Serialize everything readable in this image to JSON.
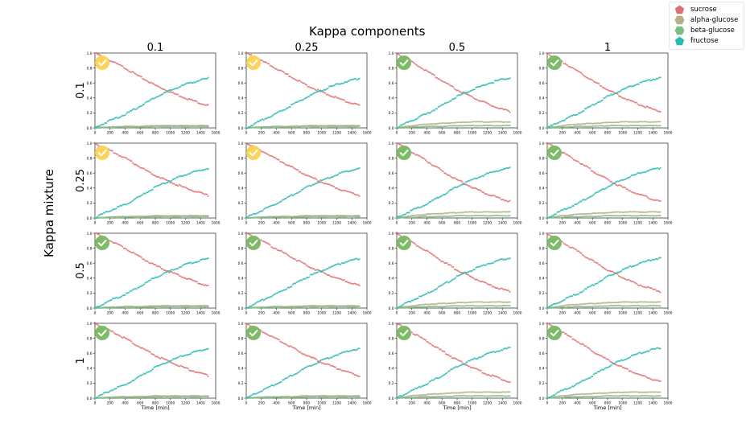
{
  "figure": {
    "title": "Kappa components",
    "row_title": "Kappa mixture",
    "column_labels": [
      "0.1",
      "0.25",
      "0.5",
      "1"
    ],
    "row_labels": [
      "0.1",
      "0.25",
      "0.5",
      "1"
    ],
    "status": [
      [
        "warning",
        "warning",
        "ok",
        "ok"
      ],
      [
        "warning",
        "warning",
        "ok",
        "ok"
      ],
      [
        "ok",
        "ok",
        "ok",
        "ok"
      ],
      [
        "ok",
        "ok",
        "ok",
        "ok"
      ]
    ],
    "status_colors": {
      "ok": "#7dbb66",
      "warning": "#fdd35a"
    }
  },
  "legend": [
    {
      "label": "sucrose",
      "color": "#e07070",
      "shape": "pentagon"
    },
    {
      "label": "alpha-glucose",
      "color": "#b9ae88",
      "shape": "hexagon"
    },
    {
      "label": "beta-glucose",
      "color": "#7cbf84",
      "shape": "hexagon"
    },
    {
      "label": "fructose",
      "color": "#2bb9b3",
      "shape": "pentagon"
    }
  ],
  "chart_data": {
    "type": "scatter",
    "xlabel": "Time [min]",
    "ylabel": "",
    "xlim": [
      0,
      1600
    ],
    "ylim": [
      0,
      1.0
    ],
    "x_ticks": [
      0,
      200,
      400,
      600,
      800,
      1000,
      1200,
      1400,
      1600
    ],
    "y_ticks": [
      "0.0",
      "0.2",
      "0.4",
      "0.6",
      "0.8",
      "1.0"
    ],
    "grid": false,
    "legend_position": "top-right",
    "x": [
      0,
      200,
      400,
      600,
      800,
      1000,
      1200,
      1400,
      1500
    ],
    "series_by_column": [
      [
        {
          "name": "sucrose",
          "values": [
            1.0,
            0.9,
            0.8,
            0.68,
            0.57,
            0.48,
            0.4,
            0.33,
            0.3
          ]
        },
        {
          "name": "alpha-glucose",
          "values": [
            0.0,
            0.01,
            0.02,
            0.02,
            0.03,
            0.03,
            0.03,
            0.03,
            0.03
          ]
        },
        {
          "name": "beta-glucose",
          "values": [
            0.0,
            0.01,
            0.01,
            0.01,
            0.02,
            0.02,
            0.02,
            0.02,
            0.02
          ]
        },
        {
          "name": "fructose",
          "values": [
            0.0,
            0.1,
            0.18,
            0.29,
            0.41,
            0.5,
            0.58,
            0.64,
            0.66
          ]
        }
      ],
      [
        {
          "name": "sucrose",
          "values": [
            1.0,
            0.9,
            0.79,
            0.68,
            0.57,
            0.48,
            0.4,
            0.33,
            0.3
          ]
        },
        {
          "name": "alpha-glucose",
          "values": [
            0.0,
            0.01,
            0.02,
            0.02,
            0.03,
            0.03,
            0.03,
            0.03,
            0.03
          ]
        },
        {
          "name": "beta-glucose",
          "values": [
            0.0,
            0.01,
            0.01,
            0.01,
            0.02,
            0.02,
            0.02,
            0.02,
            0.02
          ]
        },
        {
          "name": "fructose",
          "values": [
            0.0,
            0.1,
            0.19,
            0.3,
            0.41,
            0.5,
            0.58,
            0.64,
            0.66
          ]
        }
      ],
      [
        {
          "name": "sucrose",
          "values": [
            1.0,
            0.88,
            0.76,
            0.63,
            0.51,
            0.41,
            0.32,
            0.25,
            0.22
          ]
        },
        {
          "name": "alpha-glucose",
          "values": [
            0.0,
            0.03,
            0.05,
            0.06,
            0.07,
            0.08,
            0.08,
            0.08,
            0.08
          ]
        },
        {
          "name": "beta-glucose",
          "values": [
            0.0,
            0.01,
            0.02,
            0.02,
            0.03,
            0.03,
            0.03,
            0.03,
            0.03
          ]
        },
        {
          "name": "fructose",
          "values": [
            0.0,
            0.1,
            0.19,
            0.3,
            0.42,
            0.51,
            0.59,
            0.65,
            0.67
          ]
        }
      ],
      [
        {
          "name": "sucrose",
          "values": [
            1.0,
            0.88,
            0.76,
            0.63,
            0.51,
            0.41,
            0.32,
            0.25,
            0.22
          ]
        },
        {
          "name": "alpha-glucose",
          "values": [
            0.0,
            0.03,
            0.05,
            0.06,
            0.07,
            0.08,
            0.08,
            0.08,
            0.08
          ]
        },
        {
          "name": "beta-glucose",
          "values": [
            0.0,
            0.01,
            0.02,
            0.02,
            0.03,
            0.03,
            0.03,
            0.03,
            0.03
          ]
        },
        {
          "name": "fructose",
          "values": [
            0.0,
            0.1,
            0.19,
            0.3,
            0.42,
            0.51,
            0.59,
            0.65,
            0.67
          ]
        }
      ]
    ]
  }
}
